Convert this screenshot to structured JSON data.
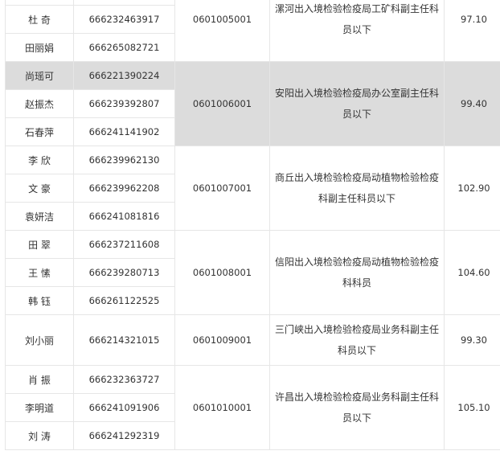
{
  "groups": [
    {
      "code": "0601005001",
      "position": "漯河出入境检验检疫局工矿科副主任科员以下",
      "score": "97.10",
      "shaded": false,
      "people": [
        {
          "name": "",
          "id": ""
        },
        {
          "name": "杜 奇",
          "id": "666232463917"
        },
        {
          "name": "田丽娟",
          "id": "666265082721"
        }
      ]
    },
    {
      "code": "0601006001",
      "position": "安阳出入境检验检疫局办公室副主任科员以下",
      "score": "99.40",
      "shaded": true,
      "people": [
        {
          "name": "尚瑶可",
          "id": "666221390224"
        },
        {
          "name": "赵振杰",
          "id": "666239392807"
        },
        {
          "name": "石春萍",
          "id": "666241141902"
        }
      ]
    },
    {
      "code": "0601007001",
      "position": "商丘出入境检验检疫局动植物检验检疫科副主任科员以下",
      "score": "102.90",
      "shaded": false,
      "people": [
        {
          "name": "李 欣",
          "id": "666239962130"
        },
        {
          "name": "文 豪",
          "id": "666239962208"
        },
        {
          "name": "袁妍洁",
          "id": "666241081816"
        }
      ]
    },
    {
      "code": "0601008001",
      "position": "信阳出入境检验检疫局动植物检验检疫科科员",
      "score": "104.60",
      "shaded": false,
      "people": [
        {
          "name": "田 翠",
          "id": "666237211608"
        },
        {
          "name": "王 愫",
          "id": "666239280713"
        },
        {
          "name": "韩 钰",
          "id": "666261122525"
        }
      ]
    },
    {
      "code": "0601009001",
      "position": "三门峡出入境检验检疫局业务科副主任科员以下",
      "score": "99.30",
      "shaded": false,
      "people": [
        {
          "name": "刘小丽",
          "id": "666214321015"
        }
      ]
    },
    {
      "code": "0601010001",
      "position": "许昌出入境检验检疫局业务科副主任科员以下",
      "score": "105.10",
      "shaded": false,
      "people": [
        {
          "name": "肖 振",
          "id": "666232363727"
        },
        {
          "name": "李明道",
          "id": "666241091906"
        },
        {
          "name": "刘 涛",
          "id": "666241292319"
        }
      ]
    }
  ],
  "colors": {
    "shade": "#dcdcdc",
    "border": "#e6e6e6",
    "text": "#333333"
  }
}
